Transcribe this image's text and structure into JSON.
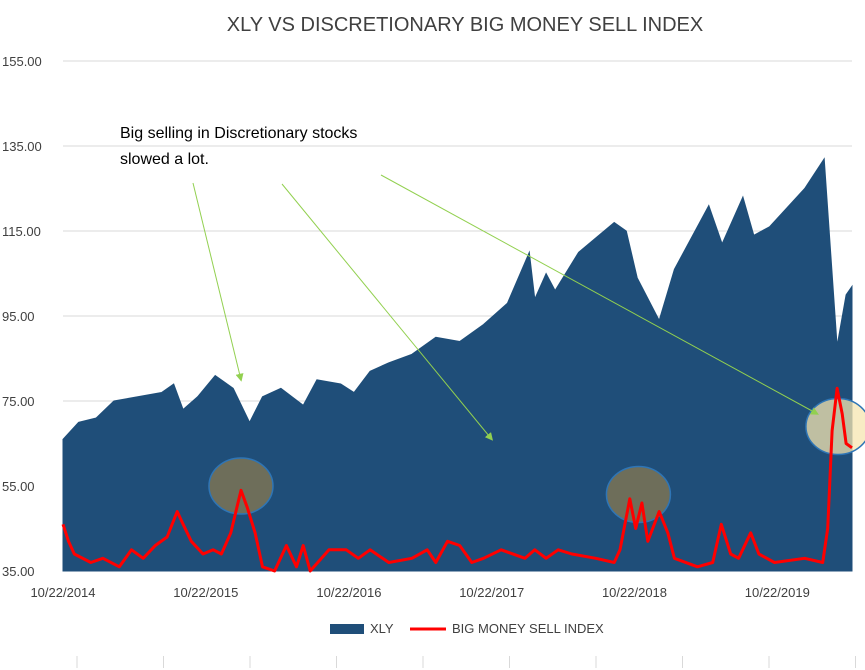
{
  "chart_data": {
    "type": "area",
    "title": "XLY VS DISCRETIONARY BIG MONEY SELL INDEX",
    "xlabel": "",
    "ylabel": "",
    "ylim": [
      35,
      155
    ],
    "y_ticks": [
      "155.00",
      "135.00",
      "115.00",
      "95.00",
      "75.00",
      "55.00",
      "35.00"
    ],
    "x_ticks": [
      "10/22/2014",
      "10/22/2015",
      "10/22/2016",
      "10/22/2017",
      "10/22/2018",
      "10/22/2019"
    ],
    "x_range": [
      "10/22/2014",
      "04/30/2020"
    ],
    "grid": "horizontal",
    "legend_position": "bottom",
    "series": [
      {
        "name": "XLY",
        "type": "area",
        "color": "#1f4e79",
        "points": [
          [
            "10/22/2014",
            66
          ],
          [
            "12/01/2014",
            70
          ],
          [
            "01/15/2015",
            71
          ],
          [
            "03/01/2015",
            75
          ],
          [
            "05/01/2015",
            76
          ],
          [
            "07/01/2015",
            77
          ],
          [
            "08/01/2015",
            79
          ],
          [
            "08/25/2015",
            73
          ],
          [
            "10/01/2015",
            76
          ],
          [
            "11/15/2015",
            81
          ],
          [
            "12/31/2015",
            78
          ],
          [
            "02/11/2016",
            70
          ],
          [
            "03/15/2016",
            76
          ],
          [
            "05/01/2016",
            78
          ],
          [
            "06/27/2016",
            74
          ],
          [
            "08/01/2016",
            80
          ],
          [
            "10/01/2016",
            79
          ],
          [
            "11/04/2016",
            77
          ],
          [
            "12/15/2016",
            82
          ],
          [
            "02/01/2017",
            84
          ],
          [
            "04/01/2017",
            86
          ],
          [
            "06/01/2017",
            90
          ],
          [
            "08/01/2017",
            89
          ],
          [
            "10/01/2017",
            93
          ],
          [
            "12/01/2017",
            98
          ],
          [
            "01/26/2018",
            110
          ],
          [
            "02/09/2018",
            99
          ],
          [
            "03/10/2018",
            105
          ],
          [
            "04/02/2018",
            101
          ],
          [
            "06/01/2018",
            110
          ],
          [
            "08/31/2018",
            117
          ],
          [
            "10/01/2018",
            115
          ],
          [
            "10/29/2018",
            104
          ],
          [
            "12/24/2018",
            94
          ],
          [
            "02/01/2019",
            106
          ],
          [
            "04/30/2019",
            121
          ],
          [
            "06/03/2019",
            112
          ],
          [
            "07/26/2019",
            123
          ],
          [
            "08/23/2019",
            114
          ],
          [
            "10/02/2019",
            116
          ],
          [
            "12/31/2019",
            125
          ],
          [
            "02/19/2020",
            132
          ],
          [
            "03/23/2020",
            88
          ],
          [
            "04/15/2020",
            100
          ],
          [
            "04/30/2020",
            102
          ]
        ]
      },
      {
        "name": "BIG MONEY SELL INDEX",
        "type": "line",
        "color": "#ff0000",
        "points": [
          [
            "10/22/2014",
            46
          ],
          [
            "11/05/2014",
            42
          ],
          [
            "11/20/2014",
            39
          ],
          [
            "01/01/2015",
            37
          ],
          [
            "02/01/2015",
            38
          ],
          [
            "03/15/2015",
            36
          ],
          [
            "04/15/2015",
            40
          ],
          [
            "05/15/2015",
            38
          ],
          [
            "06/15/2015",
            41
          ],
          [
            "07/15/2015",
            43
          ],
          [
            "08/10/2015",
            49
          ],
          [
            "08/25/2015",
            46
          ],
          [
            "09/15/2015",
            42
          ],
          [
            "10/15/2015",
            39
          ],
          [
            "11/10/2015",
            40
          ],
          [
            "12/01/2015",
            39
          ],
          [
            "12/25/2015",
            44
          ],
          [
            "01/20/2016",
            54
          ],
          [
            "02/05/2016",
            50
          ],
          [
            "02/25/2016",
            44
          ],
          [
            "03/15/2016",
            36
          ],
          [
            "04/15/2016",
            35
          ],
          [
            "05/15/2016",
            41
          ],
          [
            "06/10/2016",
            36
          ],
          [
            "06/27/2016",
            41
          ],
          [
            "07/15/2016",
            35
          ],
          [
            "09/01/2016",
            40
          ],
          [
            "10/15/2016",
            40
          ],
          [
            "11/15/2016",
            38
          ],
          [
            "12/15/2016",
            40
          ],
          [
            "02/01/2017",
            37
          ],
          [
            "04/01/2017",
            38
          ],
          [
            "05/10/2017",
            40
          ],
          [
            "06/01/2017",
            37
          ],
          [
            "07/01/2017",
            42
          ],
          [
            "08/01/2017",
            41
          ],
          [
            "09/01/2017",
            37
          ],
          [
            "10/01/2017",
            38
          ],
          [
            "11/15/2017",
            40
          ],
          [
            "01/15/2018",
            38
          ],
          [
            "02/09/2018",
            40
          ],
          [
            "03/10/2018",
            38
          ],
          [
            "04/10/2018",
            40
          ],
          [
            "05/15/2018",
            39
          ],
          [
            "07/15/2018",
            38
          ],
          [
            "08/31/2018",
            37
          ],
          [
            "09/15/2018",
            40
          ],
          [
            "10/10/2018",
            52
          ],
          [
            "10/25/2018",
            45
          ],
          [
            "11/10/2018",
            51
          ],
          [
            "11/25/2018",
            42
          ],
          [
            "12/24/2018",
            49
          ],
          [
            "01/15/2019",
            44
          ],
          [
            "02/01/2019",
            38
          ],
          [
            "04/01/2019",
            36
          ],
          [
            "05/10/2019",
            37
          ],
          [
            "06/01/2019",
            46
          ],
          [
            "06/25/2019",
            39
          ],
          [
            "07/15/2019",
            38
          ],
          [
            "08/15/2019",
            44
          ],
          [
            "09/05/2019",
            39
          ],
          [
            "10/15/2019",
            37
          ],
          [
            "12/31/2019",
            38
          ],
          [
            "02/15/2020",
            37
          ],
          [
            "02/28/2020",
            45
          ],
          [
            "03/10/2020",
            68
          ],
          [
            "03/23/2020",
            78
          ],
          [
            "04/05/2020",
            72
          ],
          [
            "04/15/2020",
            65
          ],
          [
            "04/30/2020",
            64
          ]
        ]
      }
    ],
    "annotations": [
      {
        "lines": [
          "Big selling in Discretionary stocks",
          "slowed a lot."
        ]
      }
    ],
    "highlight_circles": [
      {
        "date": "01/20/2016",
        "value": 55,
        "color": "#8a7a50"
      },
      {
        "date": "11/01/2018",
        "value": 53,
        "color": "#8a7a50"
      },
      {
        "date": "03/25/2020",
        "value": 69,
        "color": "#f5e6b0"
      }
    ],
    "arrows": [
      {
        "to_date": "01/20/2016",
        "to_value": 80
      },
      {
        "to_date": "10/22/2017",
        "to_value": 66
      },
      {
        "to_date": "02/01/2020",
        "to_value": 72
      }
    ]
  }
}
